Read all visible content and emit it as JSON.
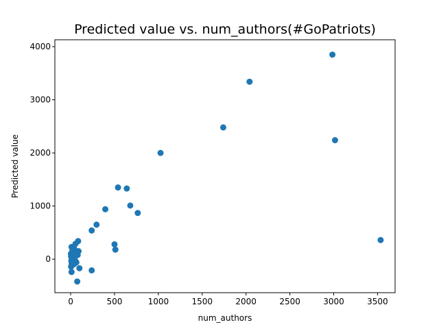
{
  "chart_data": {
    "type": "scatter",
    "title": "Predicted value vs. num_authors(#GoPatriots)",
    "xlabel": "num_authors",
    "ylabel": "Predicted value",
    "xlim": [
      -180,
      3700
    ],
    "ylim": [
      -630,
      4130
    ],
    "xticks": [
      0,
      500,
      1000,
      1500,
      2000,
      2500,
      3000,
      3500
    ],
    "yticks": [
      0,
      1000,
      2000,
      3000,
      4000
    ],
    "xtick_labels": [
      "0",
      "500",
      "1000",
      "1500",
      "2000",
      "2500",
      "3000",
      "3500"
    ],
    "ytick_labels": [
      "0",
      "1000",
      "2000",
      "3000",
      "4000"
    ],
    "grid": false,
    "legend": "none",
    "marker_color": "#1f77b4",
    "points": [
      {
        "x": 2985,
        "y": 3850
      },
      {
        "x": 2040,
        "y": 3340
      },
      {
        "x": 1740,
        "y": 2480
      },
      {
        "x": 3015,
        "y": 2240
      },
      {
        "x": 1025,
        "y": 2000
      },
      {
        "x": 540,
        "y": 1350
      },
      {
        "x": 640,
        "y": 1330
      },
      {
        "x": 680,
        "y": 1010
      },
      {
        "x": 395,
        "y": 940
      },
      {
        "x": 765,
        "y": 870
      },
      {
        "x": 295,
        "y": 650
      },
      {
        "x": 240,
        "y": 540
      },
      {
        "x": 3535,
        "y": 360
      },
      {
        "x": 500,
        "y": 280
      },
      {
        "x": 510,
        "y": 180
      },
      {
        "x": 240,
        "y": -210
      },
      {
        "x": 75,
        "y": -420
      },
      {
        "x": 10,
        "y": -240
      },
      {
        "x": 100,
        "y": -170
      },
      {
        "x": 85,
        "y": 340
      },
      {
        "x": 55,
        "y": 290
      },
      {
        "x": 10,
        "y": 230
      },
      {
        "x": 40,
        "y": 200
      },
      {
        "x": 90,
        "y": 150
      },
      {
        "x": 20,
        "y": 160
      },
      {
        "x": 70,
        "y": 110
      },
      {
        "x": 30,
        "y": 90
      },
      {
        "x": 60,
        "y": 70
      },
      {
        "x": 5,
        "y": 50
      },
      {
        "x": 45,
        "y": 40
      },
      {
        "x": 15,
        "y": 20
      },
      {
        "x": 35,
        "y": 0
      },
      {
        "x": 50,
        "y": -20
      },
      {
        "x": 8,
        "y": -30
      },
      {
        "x": 25,
        "y": -50
      },
      {
        "x": 65,
        "y": -60
      },
      {
        "x": 12,
        "y": -80
      },
      {
        "x": 40,
        "y": -90
      },
      {
        "x": 20,
        "y": -110
      },
      {
        "x": 5,
        "y": -140
      },
      {
        "x": 30,
        "y": 120
      },
      {
        "x": 80,
        "y": 80
      },
      {
        "x": 3,
        "y": 100
      }
    ]
  }
}
